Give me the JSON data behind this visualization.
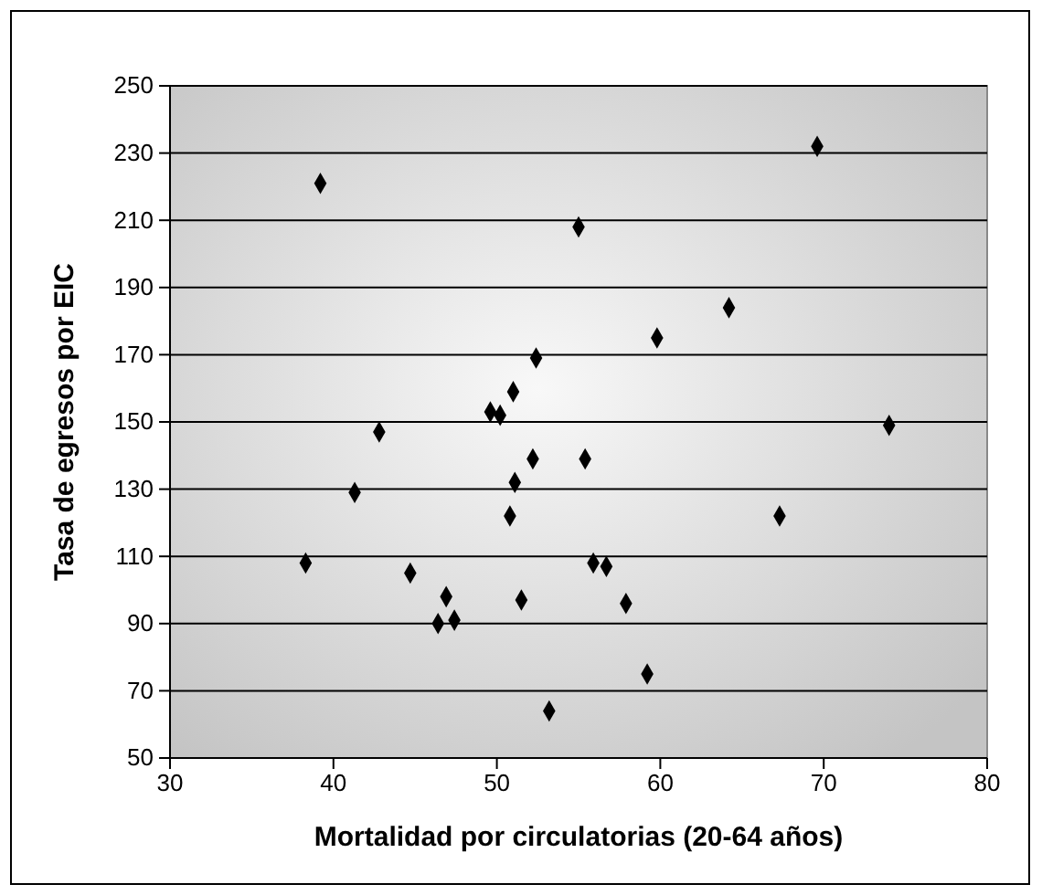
{
  "chart_data": {
    "type": "scatter",
    "xlabel": "Mortalidad por circulatorias (20-64 años)",
    "ylabel": "Tasa de egresos por EIC",
    "x": [
      39.2,
      38.3,
      41.3,
      42.8,
      44.7,
      46.4,
      46.9,
      47.4,
      49.6,
      50.2,
      50.8,
      51.0,
      51.1,
      51.5,
      52.2,
      52.4,
      53.2,
      55.0,
      55.4,
      55.9,
      56.7,
      57.9,
      59.2,
      59.8,
      64.2,
      67.3,
      69.6,
      74.0
    ],
    "values": [
      221,
      108,
      129,
      147,
      105,
      90,
      98,
      91,
      153,
      152,
      122,
      159,
      132,
      97,
      139,
      169,
      64,
      208,
      139,
      108,
      107,
      96,
      75,
      175,
      184,
      122,
      232,
      149
    ],
    "color": "#000000",
    "marker": "diamond",
    "grid": "y",
    "xlim": [
      30,
      80
    ],
    "xticks": [
      30,
      40,
      50,
      60,
      70,
      80
    ],
    "ylim": [
      50,
      250
    ],
    "yticks": [
      50,
      70,
      90,
      110,
      130,
      150,
      170,
      190,
      210,
      230,
      250
    ]
  }
}
